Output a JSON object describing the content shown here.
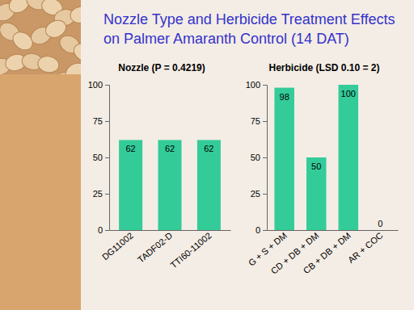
{
  "title": "Nozzle Type and Herbicide Treatment Effects on Palmer Amaranth Control (14 DAT)",
  "chart_data": [
    {
      "type": "bar",
      "title": "Nozzle (P = 0.4219)",
      "categories": [
        "DG11002",
        "TADF02-D",
        "TTI60-11002"
      ],
      "values": [
        62,
        62,
        62
      ],
      "color": "#33cc99",
      "ylim": [
        0,
        100
      ],
      "yticks": [
        0,
        25,
        50,
        75,
        100
      ],
      "grid": false,
      "data_labels": true
    },
    {
      "type": "bar",
      "title": "Herbicide (LSD 0.10 = 2)",
      "categories": [
        "G + S + DM",
        "CD + DB + DM",
        "CB + DB + DM",
        "AR + COC"
      ],
      "values": [
        98,
        50,
        100,
        0
      ],
      "color": "#33cc99",
      "ylim": [
        0,
        100
      ],
      "yticks": [
        0,
        25,
        50,
        75,
        100
      ],
      "grid": false,
      "data_labels": true
    }
  ]
}
